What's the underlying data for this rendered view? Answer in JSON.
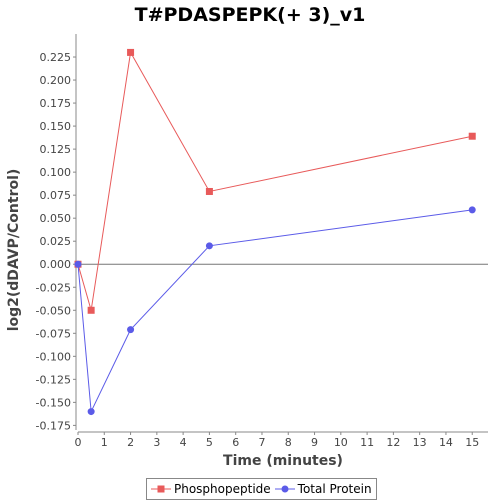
{
  "chart_data": {
    "type": "line",
    "title": "T#PDASPEPK(+ 3)_v1",
    "xlabel": "Time (minutes)",
    "ylabel": "log2(dDAVP/Control)",
    "xlim": [
      0,
      15.6
    ],
    "ylim": [
      -0.18,
      0.25
    ],
    "x_ticks": [
      0,
      1,
      2,
      3,
      4,
      5,
      6,
      7,
      8,
      9,
      10,
      11,
      12,
      13,
      14,
      15
    ],
    "y_ticks": [
      -0.175,
      -0.15,
      -0.125,
      -0.1,
      -0.075,
      -0.05,
      -0.025,
      0.0,
      0.025,
      0.05,
      0.075,
      0.1,
      0.125,
      0.15,
      0.175,
      0.2,
      0.225
    ],
    "y_tick_labels": [
      "-0.175",
      "-0.150",
      "-0.125",
      "-0.100",
      "-0.075",
      "-0.050",
      "-0.025",
      "0.000",
      "0.025",
      "0.050",
      "0.075",
      "0.100",
      "0.125",
      "0.150",
      "0.175",
      "0.200",
      "0.225"
    ],
    "zero_line": true,
    "grid": false,
    "legend_position": "bottom",
    "series": [
      {
        "name": "Phosphopeptide",
        "color": "#e85a5a",
        "marker": "square",
        "x": [
          0,
          0.5,
          2,
          5,
          15
        ],
        "y": [
          0.0,
          -0.05,
          0.23,
          0.079,
          0.139
        ]
      },
      {
        "name": "Total Protein",
        "color": "#5b5be8",
        "marker": "circle",
        "x": [
          0,
          0.5,
          2,
          5,
          15
        ],
        "y": [
          0.0,
          -0.16,
          -0.071,
          0.02,
          0.059
        ]
      }
    ]
  }
}
